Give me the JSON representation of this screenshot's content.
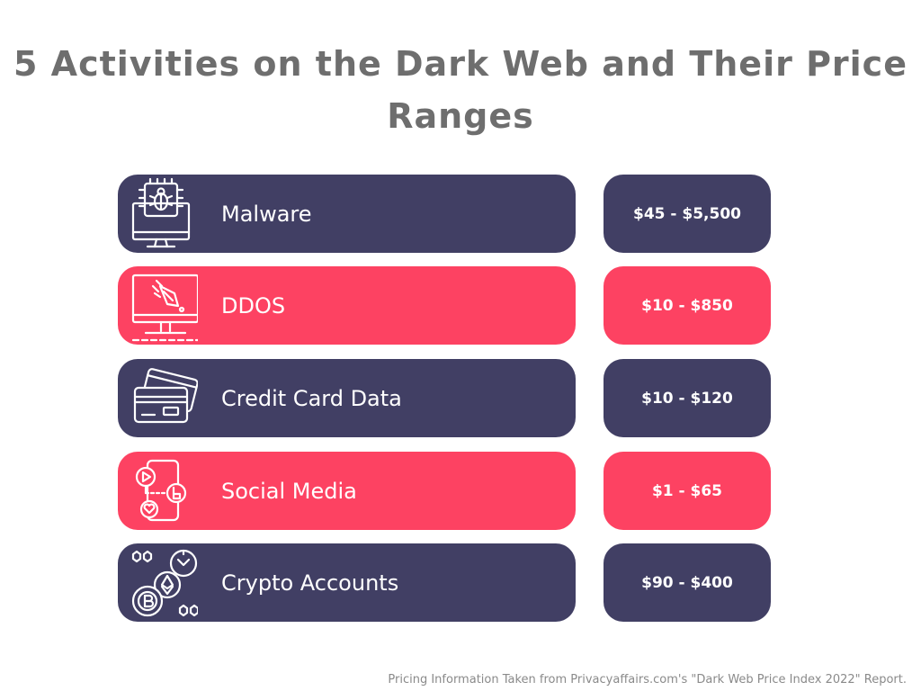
{
  "title": "5 Activities on the Dark Web and Their Price Ranges",
  "activities": [
    {
      "label": "Malware",
      "price": "$45 - $5,500",
      "icon": "malware-icon",
      "color": "#413f64"
    },
    {
      "label": "DDOS",
      "price": "$10 - $850",
      "icon": "ddos-icon",
      "color": "#fd4262"
    },
    {
      "label": "Credit Card Data",
      "price": "$10 - $120",
      "icon": "credit-card-icon",
      "color": "#413f64"
    },
    {
      "label": "Social Media",
      "price": "$1 - $65",
      "icon": "social-media-icon",
      "color": "#fd4262"
    },
    {
      "label": "Crypto Accounts",
      "price": "$90 - $400",
      "icon": "crypto-icon",
      "color": "#413f64"
    }
  ],
  "footer": "Pricing Information Taken from Privacyaffairs.com's \"Dark Web Price Index 2022\" Report."
}
